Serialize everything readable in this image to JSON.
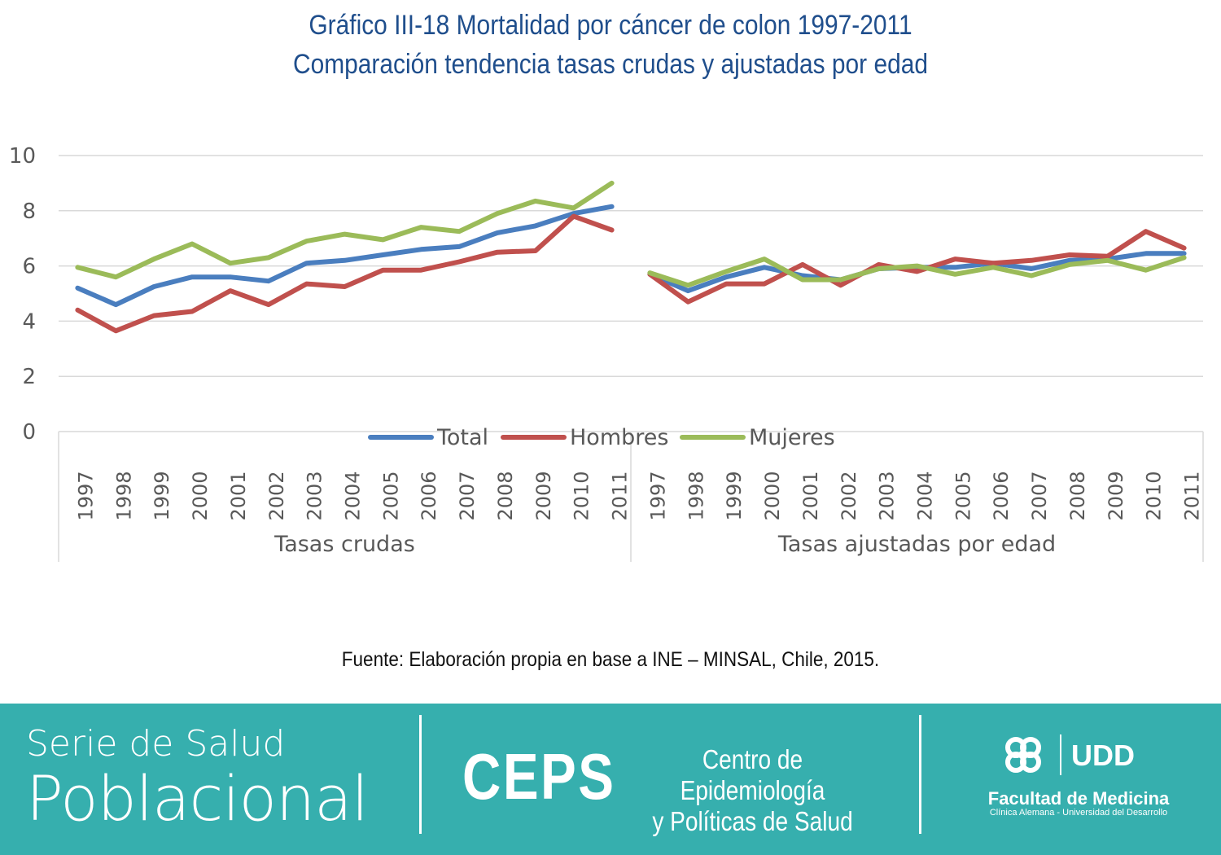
{
  "chart_data": {
    "type": "line",
    "title": "Gráfico III-18 Mortalidad por cáncer de colon 1997-2011",
    "subtitle": "Comparación tendencia tasas crudas y ajustadas por edad",
    "ylim": [
      0,
      10
    ],
    "yticks": [
      "0",
      "2",
      "4",
      "6",
      "8",
      "10"
    ],
    "grid": "horizontal",
    "legend_position": "bottom-inline",
    "groups": [
      {
        "label": "Tasas crudas",
        "categories": [
          "1997",
          "1998",
          "1999",
          "2000",
          "2001",
          "2002",
          "2003",
          "2004",
          "2005",
          "2006",
          "2007",
          "2008",
          "2009",
          "2010",
          "2011"
        ],
        "series": [
          {
            "name": "Total",
            "color": "#4a7ebf",
            "values": [
              5.2,
              4.6,
              5.25,
              5.6,
              5.6,
              5.45,
              6.1,
              6.2,
              6.4,
              6.6,
              6.7,
              7.2,
              7.45,
              7.9,
              8.15
            ]
          },
          {
            "name": "Hombres",
            "color": "#c0504d",
            "values": [
              4.4,
              3.65,
              4.2,
              4.35,
              5.1,
              4.6,
              5.35,
              5.25,
              5.85,
              5.85,
              6.15,
              6.5,
              6.55,
              7.8,
              7.3
            ]
          },
          {
            "name": "Mujeres",
            "color": "#9bbb59",
            "values": [
              5.95,
              5.6,
              6.25,
              6.8,
              6.1,
              6.3,
              6.9,
              7.15,
              6.95,
              7.4,
              7.25,
              7.9,
              8.35,
              8.1,
              9.0
            ]
          }
        ]
      },
      {
        "label": "Tasas ajustadas por edad",
        "categories": [
          "1997",
          "1998",
          "1999",
          "2000",
          "2001",
          "2002",
          "2003",
          "2004",
          "2005",
          "2006",
          "2007",
          "2008",
          "2009",
          "2010",
          "2011"
        ],
        "series": [
          {
            "name": "Total",
            "color": "#4a7ebf",
            "values": [
              5.7,
              5.1,
              5.6,
              5.95,
              5.65,
              5.5,
              5.9,
              5.95,
              5.95,
              6.1,
              5.9,
              6.2,
              6.25,
              6.45,
              6.45
            ]
          },
          {
            "name": "Hombres",
            "color": "#c0504d",
            "values": [
              5.7,
              4.7,
              5.35,
              5.35,
              6.05,
              5.3,
              6.05,
              5.8,
              6.25,
              6.1,
              6.2,
              6.4,
              6.35,
              7.25,
              6.65
            ]
          },
          {
            "name": "Mujeres",
            "color": "#9bbb59",
            "values": [
              5.75,
              5.3,
              5.8,
              6.25,
              5.5,
              5.5,
              5.9,
              6.0,
              5.7,
              5.95,
              5.65,
              6.05,
              6.2,
              5.85,
              6.3
            ]
          }
        ]
      }
    ]
  },
  "source": "Fuente: Elaboración propia en base a INE – MINSAL, Chile, 2015.",
  "footer": {
    "series_line1": "Serie de Salud",
    "series_line2": "Poblacional",
    "ceps": "CEPS",
    "ceps_line1": "Centro de Epidemiología",
    "ceps_line2": "y Políticas de Salud",
    "udd": "UDD",
    "facultad": "Facultad de Medicina",
    "facultad_sub": "Clínica Alemana - Universidad del Desarrollo"
  }
}
